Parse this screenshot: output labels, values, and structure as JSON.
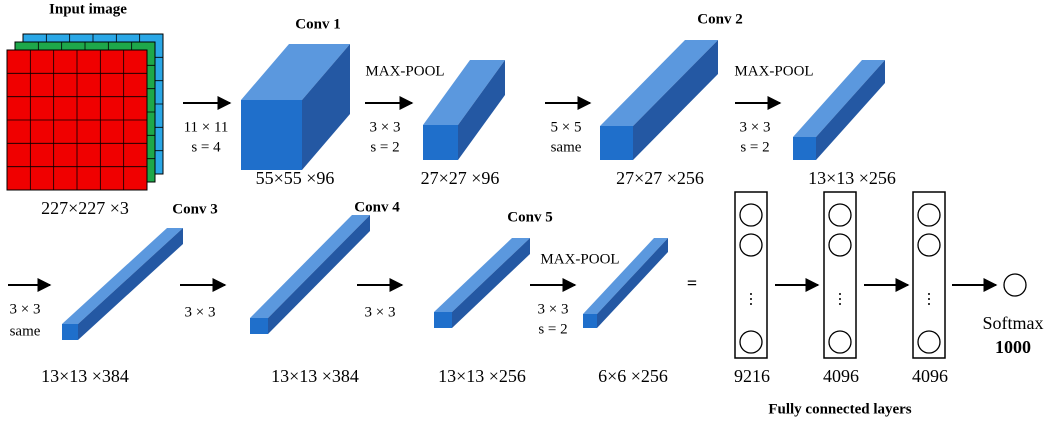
{
  "input": {
    "title": "Input image",
    "shape": "227×227 ×3"
  },
  "layers": [
    {
      "label": "Conv 1",
      "shape": "55×55 ×96"
    },
    {
      "shape": "27×27 ×96"
    },
    {
      "label": "Conv 2",
      "shape": "27×27 ×256"
    },
    {
      "shape": "13×13 ×256"
    },
    {
      "label": "Conv 3",
      "shape": "13×13 ×384"
    },
    {
      "label": "Conv 4",
      "shape": "13×13 ×384"
    },
    {
      "label": "Conv 5",
      "shape": "13×13 ×256"
    },
    {
      "shape": "6×6 ×256"
    }
  ],
  "operations": [
    {
      "params": [
        "11 × 11",
        "s = 4"
      ]
    },
    {
      "name": "MAX-POOL",
      "params": [
        "3 × 3",
        "s = 2"
      ]
    },
    {
      "params": [
        "5 × 5",
        "same"
      ]
    },
    {
      "name": "MAX-POOL",
      "params": [
        "3 × 3",
        "s = 2"
      ]
    },
    {
      "params": [
        "3 × 3",
        "same"
      ]
    },
    {
      "params": [
        "3 × 3"
      ]
    },
    {
      "params": [
        "3 × 3"
      ]
    },
    {
      "name": "MAX-POOL",
      "params": [
        "3 × 3",
        "s = 2"
      ]
    }
  ],
  "equals": "=",
  "fully_connected": {
    "title": "Fully connected layers",
    "layers": [
      "9216",
      "4096",
      "4096"
    ],
    "ellipsis": "⋮",
    "output": {
      "name": "Softmax",
      "size": "1000"
    }
  }
}
